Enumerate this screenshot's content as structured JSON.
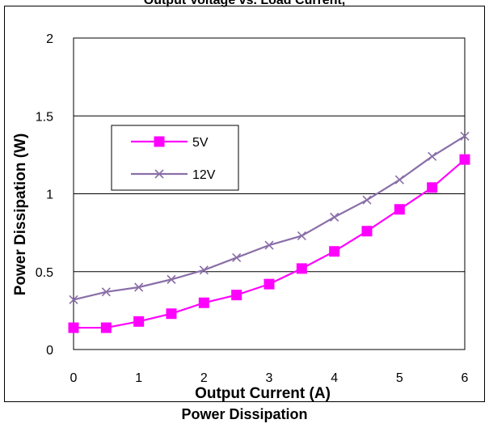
{
  "top_title": "Output Voltage vs. Load Current,",
  "caption": "Power Dissipation",
  "chart_data": {
    "type": "line",
    "title": "",
    "xlabel": "Output  Current (A)",
    "ylabel": "Power Dissipation (W)",
    "xlim": [
      0,
      6
    ],
    "ylim": [
      0,
      2
    ],
    "x_ticks": [
      "0",
      "1",
      "2",
      "3",
      "4",
      "5",
      "6"
    ],
    "y_ticks": [
      "0",
      "0.5",
      "1",
      "1.5",
      "2"
    ],
    "grid": "horizontal",
    "legend_position": "upper-left",
    "x": [
      0,
      0.5,
      1,
      1.5,
      2,
      2.5,
      3,
      3.5,
      4,
      4.5,
      5,
      5.5,
      6
    ],
    "series": [
      {
        "name": "5V",
        "color": "#ff00ff",
        "marker": "square",
        "values": [
          0.14,
          0.14,
          0.18,
          0.23,
          0.3,
          0.35,
          0.42,
          0.52,
          0.63,
          0.76,
          0.9,
          1.04,
          1.22
        ]
      },
      {
        "name": "12V",
        "color": "#8a6fa8",
        "marker": "x",
        "values": [
          0.32,
          0.37,
          0.4,
          0.45,
          0.51,
          0.59,
          0.67,
          0.73,
          0.85,
          0.96,
          1.09,
          1.24,
          1.37
        ]
      }
    ]
  }
}
